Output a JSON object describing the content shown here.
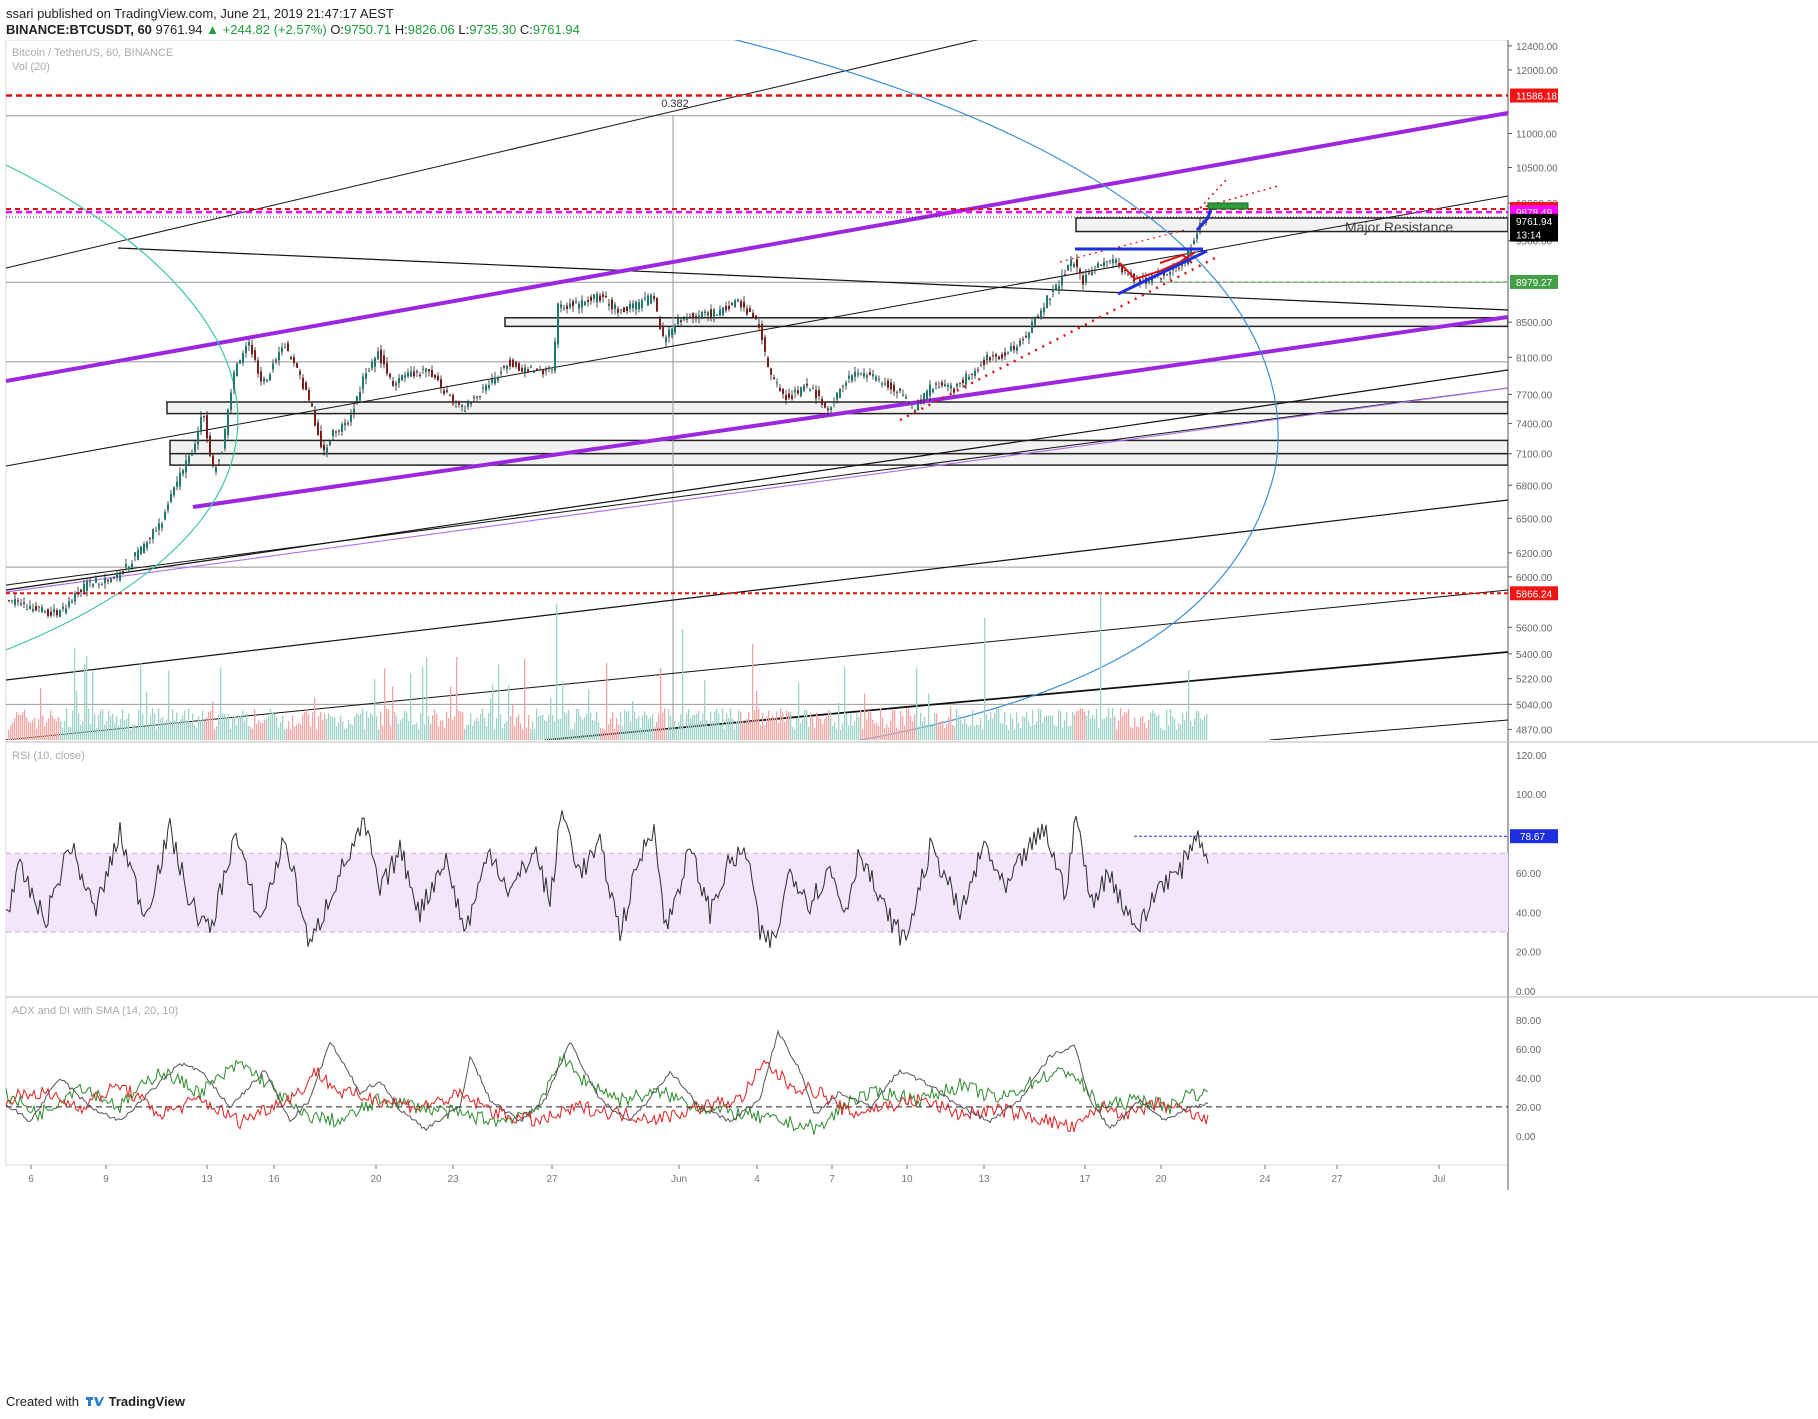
{
  "header": {
    "author": "ssari",
    "published_text": "published on TradingView.com, June 21, 2019 21:47:17 AEST",
    "symbol": "BINANCE:BTCUSDT, 60",
    "last": "9761.94",
    "change": "+244.82 (+2.57%)",
    "o_label": "O:",
    "o": "9750.71",
    "h_label": "H:",
    "h": "9826.06",
    "l_label": "L:",
    "l": "9735.30",
    "c_label": "C:",
    "c": "9761.94"
  },
  "footer": {
    "created_with": "Created with",
    "brand": "TradingView"
  },
  "colors": {
    "up": "#26a69a",
    "down": "#ef5350",
    "purple": "#9c27e0",
    "blue": "#1e2fe0",
    "red": "#e01010"
  },
  "chart_data": {
    "type": "candlestick",
    "legends": {
      "main": "Bitcoin / TetherUS, 60, BINANCE",
      "volume": "Vol (20)",
      "rsi": "RSI (10, close)",
      "adx": "ADX and DI with SMA (14, 20, 10)"
    },
    "x_ticks": [
      "6",
      "9",
      "13",
      "16",
      "20",
      "23",
      "27",
      "Jun",
      "4",
      "7",
      "10",
      "13",
      "17",
      "20",
      "24",
      "27",
      "Jul"
    ],
    "price_axis": [
      "12400.00",
      "12000.00",
      "11000.00",
      "10500.00",
      "10000.00",
      "9500.00",
      "8500.00",
      "8100.00",
      "7700.00",
      "7400.00",
      "7100.00",
      "6800.00",
      "6500.00",
      "6200.00",
      "6000.00",
      "5600.00",
      "5400.00",
      "5220.00",
      "5040.00",
      "4870.00"
    ],
    "price_scale": "log",
    "price_range": [
      4800,
      12500
    ],
    "rsi_axis": [
      "120.00",
      "100.00",
      "80.00",
      "60.00",
      "40.00",
      "20.00",
      "0.00"
    ],
    "rsi_range": [
      -2,
      125
    ],
    "rsi_band": [
      30,
      70
    ],
    "adx_axis": [
      "80.00",
      "60.00",
      "40.00",
      "20.00",
      "0.00"
    ],
    "adx_range": [
      -20,
      95
    ],
    "adx_reference": 20,
    "price_labels": [
      {
        "text": "11586.18",
        "value": 11586.18,
        "bg": "#f01515",
        "fg": "#ffffff"
      },
      {
        "text": "9920.24",
        "value": 9920.24,
        "bg": "#f01515",
        "fg": "#ffffff"
      },
      {
        "text": "9878.49",
        "value": 9878.49,
        "bg": "#ff00ff",
        "fg": "#ffffff"
      },
      {
        "text": "9761.94",
        "value": 9761.94,
        "bg": "#000000",
        "fg": "#ffffff"
      },
      {
        "text": "13:14",
        "value": 9580,
        "bg": "#000000",
        "fg": "#ffffff"
      },
      {
        "text": "8979.27",
        "value": 8979.27,
        "bg": "#43a047",
        "fg": "#ffffff"
      },
      {
        "text": "5866.24",
        "value": 5866.24,
        "bg": "#f01515",
        "fg": "#ffffff"
      }
    ],
    "rsi_label": {
      "text": "78.67",
      "value": 78.67
    },
    "annotations": {
      "fib": "0.382",
      "resistance": "Major Resistance"
    },
    "price_path": [
      [
        0,
        5820
      ],
      [
        60,
        5700
      ],
      [
        90,
        5950
      ],
      [
        120,
        6000
      ],
      [
        145,
        6250
      ],
      [
        165,
        6500
      ],
      [
        180,
        6850
      ],
      [
        195,
        7150
      ],
      [
        205,
        7500
      ],
      [
        215,
        6950
      ],
      [
        225,
        7150
      ],
      [
        235,
        7900
      ],
      [
        250,
        8300
      ],
      [
        265,
        7800
      ],
      [
        285,
        8250
      ],
      [
        300,
        7950
      ],
      [
        315,
        7500
      ],
      [
        325,
        7100
      ],
      [
        335,
        7300
      ],
      [
        350,
        7400
      ],
      [
        365,
        7850
      ],
      [
        380,
        8150
      ],
      [
        395,
        7800
      ],
      [
        410,
        7900
      ],
      [
        430,
        7950
      ],
      [
        450,
        7700
      ],
      [
        465,
        7550
      ],
      [
        490,
        7800
      ],
      [
        510,
        8050
      ],
      [
        530,
        7950
      ],
      [
        555,
        7950
      ],
      [
        560,
        8700
      ],
      [
        575,
        8700
      ],
      [
        600,
        8800
      ],
      [
        620,
        8650
      ],
      [
        640,
        8700
      ],
      [
        655,
        8800
      ],
      [
        665,
        8300
      ],
      [
        680,
        8500
      ],
      [
        700,
        8600
      ],
      [
        720,
        8600
      ],
      [
        740,
        8750
      ],
      [
        760,
        8500
      ],
      [
        770,
        7950
      ],
      [
        790,
        7650
      ],
      [
        810,
        7800
      ],
      [
        830,
        7550
      ],
      [
        845,
        7800
      ],
      [
        860,
        7950
      ],
      [
        880,
        7850
      ],
      [
        905,
        7700
      ],
      [
        915,
        7550
      ],
      [
        935,
        7800
      ],
      [
        955,
        7750
      ],
      [
        970,
        7900
      ],
      [
        990,
        8100
      ],
      [
        1010,
        8150
      ],
      [
        1025,
        8300
      ],
      [
        1045,
        8700
      ],
      [
        1060,
        8950
      ],
      [
        1075,
        9250
      ],
      [
        1085,
        9000
      ],
      [
        1100,
        9200
      ],
      [
        1115,
        9250
      ],
      [
        1130,
        9050
      ],
      [
        1150,
        9000
      ],
      [
        1170,
        9100
      ],
      [
        1185,
        9200
      ],
      [
        1195,
        9450
      ],
      [
        1200,
        9700
      ],
      [
        1208,
        9762
      ]
    ],
    "rsi_path": [
      [
        0,
        30
      ],
      [
        20,
        62
      ],
      [
        45,
        35
      ],
      [
        70,
        75
      ],
      [
        95,
        40
      ],
      [
        120,
        80
      ],
      [
        145,
        38
      ],
      [
        170,
        82
      ],
      [
        190,
        45
      ],
      [
        210,
        30
      ],
      [
        235,
        80
      ],
      [
        260,
        35
      ],
      [
        285,
        78
      ],
      [
        310,
        22
      ],
      [
        335,
        55
      ],
      [
        365,
        85
      ],
      [
        380,
        50
      ],
      [
        400,
        72
      ],
      [
        420,
        40
      ],
      [
        445,
        68
      ],
      [
        465,
        30
      ],
      [
        490,
        72
      ],
      [
        510,
        50
      ],
      [
        535,
        72
      ],
      [
        550,
        45
      ],
      [
        562,
        92
      ],
      [
        580,
        60
      ],
      [
        600,
        74
      ],
      [
        620,
        30
      ],
      [
        640,
        68
      ],
      [
        655,
        85
      ],
      [
        665,
        30
      ],
      [
        690,
        72
      ],
      [
        710,
        40
      ],
      [
        730,
        66
      ],
      [
        748,
        70
      ],
      [
        760,
        28
      ],
      [
        775,
        25
      ],
      [
        790,
        62
      ],
      [
        810,
        45
      ],
      [
        830,
        62
      ],
      [
        845,
        40
      ],
      [
        860,
        72
      ],
      [
        880,
        45
      ],
      [
        905,
        25
      ],
      [
        930,
        72
      ],
      [
        945,
        60
      ],
      [
        960,
        38
      ],
      [
        985,
        75
      ],
      [
        1005,
        50
      ],
      [
        1025,
        70
      ],
      [
        1045,
        82
      ],
      [
        1065,
        50
      ],
      [
        1077,
        90
      ],
      [
        1090,
        45
      ],
      [
        1110,
        60
      ],
      [
        1125,
        42
      ],
      [
        1140,
        32
      ],
      [
        1160,
        55
      ],
      [
        1180,
        60
      ],
      [
        1195,
        80
      ],
      [
        1208,
        70
      ]
    ],
    "adx_path": [
      [
        0,
        25
      ],
      [
        30,
        10
      ],
      [
        60,
        40
      ],
      [
        90,
        20
      ],
      [
        120,
        10
      ],
      [
        150,
        30
      ],
      [
        180,
        50
      ],
      [
        200,
        45
      ],
      [
        230,
        20
      ],
      [
        265,
        45
      ],
      [
        290,
        10
      ],
      [
        310,
        25
      ],
      [
        330,
        65
      ],
      [
        360,
        30
      ],
      [
        380,
        38
      ],
      [
        400,
        18
      ],
      [
        425,
        5
      ],
      [
        460,
        20
      ],
      [
        470,
        55
      ],
      [
        490,
        25
      ],
      [
        520,
        10
      ],
      [
        545,
        25
      ],
      [
        570,
        65
      ],
      [
        600,
        25
      ],
      [
        630,
        10
      ],
      [
        655,
        30
      ],
      [
        670,
        45
      ],
      [
        700,
        20
      ],
      [
        730,
        10
      ],
      [
        760,
        25
      ],
      [
        778,
        72
      ],
      [
        800,
        45
      ],
      [
        815,
        15
      ],
      [
        840,
        30
      ],
      [
        870,
        20
      ],
      [
        900,
        45
      ],
      [
        930,
        35
      ],
      [
        960,
        20
      ],
      [
        990,
        10
      ],
      [
        1020,
        25
      ],
      [
        1050,
        55
      ],
      [
        1075,
        62
      ],
      [
        1090,
        25
      ],
      [
        1110,
        5
      ],
      [
        1140,
        25
      ],
      [
        1165,
        10
      ],
      [
        1190,
        20
      ],
      [
        1208,
        22
      ]
    ],
    "plus_di_path": [
      [
        0,
        30
      ],
      [
        40,
        15
      ],
      [
        80,
        35
      ],
      [
        120,
        20
      ],
      [
        160,
        45
      ],
      [
        200,
        30
      ],
      [
        240,
        50
      ],
      [
        270,
        35
      ],
      [
        300,
        15
      ],
      [
        340,
        10
      ],
      [
        380,
        25
      ],
      [
        420,
        20
      ],
      [
        460,
        15
      ],
      [
        500,
        10
      ],
      [
        540,
        20
      ],
      [
        560,
        55
      ],
      [
        580,
        40
      ],
      [
        620,
        25
      ],
      [
        660,
        30
      ],
      [
        700,
        20
      ],
      [
        740,
        15
      ],
      [
        780,
        10
      ],
      [
        820,
        5
      ],
      [
        850,
        25
      ],
      [
        880,
        30
      ],
      [
        920,
        25
      ],
      [
        960,
        35
      ],
      [
        1000,
        25
      ],
      [
        1040,
        40
      ],
      [
        1070,
        45
      ],
      [
        1100,
        20
      ],
      [
        1140,
        25
      ],
      [
        1170,
        20
      ],
      [
        1190,
        30
      ],
      [
        1208,
        28
      ]
    ],
    "minus_di_path": [
      [
        0,
        25
      ],
      [
        40,
        30
      ],
      [
        80,
        20
      ],
      [
        120,
        35
      ],
      [
        160,
        15
      ],
      [
        200,
        25
      ],
      [
        240,
        10
      ],
      [
        270,
        20
      ],
      [
        300,
        30
      ],
      [
        315,
        45
      ],
      [
        340,
        30
      ],
      [
        380,
        25
      ],
      [
        420,
        20
      ],
      [
        460,
        28
      ],
      [
        500,
        15
      ],
      [
        540,
        10
      ],
      [
        580,
        20
      ],
      [
        620,
        15
      ],
      [
        660,
        12
      ],
      [
        700,
        20
      ],
      [
        740,
        25
      ],
      [
        765,
        50
      ],
      [
        790,
        35
      ],
      [
        820,
        30
      ],
      [
        850,
        15
      ],
      [
        880,
        20
      ],
      [
        920,
        25
      ],
      [
        960,
        15
      ],
      [
        1000,
        18
      ],
      [
        1040,
        12
      ],
      [
        1075,
        5
      ],
      [
        1100,
        20
      ],
      [
        1130,
        15
      ],
      [
        1160,
        22
      ],
      [
        1190,
        15
      ],
      [
        1208,
        10
      ]
    ]
  }
}
